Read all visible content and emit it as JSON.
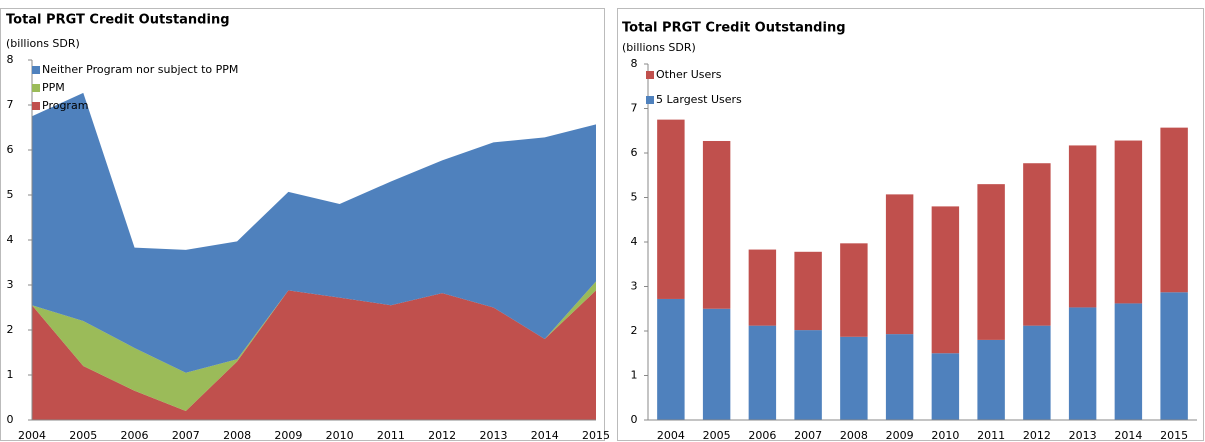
{
  "chart_data": [
    {
      "type": "area",
      "title": "Total PRGT Credit Outstanding",
      "subtitle": "(billions SDR)",
      "categories": [
        "2004",
        "2005",
        "2006",
        "2007",
        "2008",
        "2009",
        "2010",
        "2011",
        "2012",
        "2013",
        "2014",
        "2015"
      ],
      "series": [
        {
          "name": "Program",
          "color": "#c0504d",
          "values": [
            2.55,
            1.2,
            0.65,
            0.2,
            1.3,
            2.88,
            2.72,
            2.55,
            2.82,
            2.5,
            1.8,
            2.88
          ]
        },
        {
          "name": "PPM",
          "color": "#9bbb59",
          "values": [
            0,
            1.0,
            0.95,
            0.85,
            0.05,
            0,
            0,
            0,
            0,
            0,
            0,
            0.2
          ]
        },
        {
          "name": "Neither Program nor subject to PPM",
          "color": "#4f81bd",
          "values": [
            4.2,
            5.07,
            2.23,
            2.73,
            2.62,
            2.19,
            2.08,
            2.75,
            2.95,
            3.67,
            4.48,
            3.49
          ]
        }
      ],
      "ylim": [
        0,
        8
      ],
      "yticks": [
        0,
        1,
        2,
        3,
        4,
        5,
        6,
        7,
        8
      ]
    },
    {
      "type": "bar",
      "title": "Total PRGT Credit Outstanding",
      "subtitle": "(billions SDR)",
      "categories": [
        "2004",
        "2005",
        "2006",
        "2007",
        "2008",
        "2009",
        "2010",
        "2011",
        "2012",
        "2013",
        "2014",
        "2015"
      ],
      "series": [
        {
          "name": "5 Largest Users",
          "color": "#4f81bd",
          "values": [
            2.72,
            2.5,
            2.12,
            2.02,
            1.87,
            1.93,
            1.5,
            1.8,
            2.12,
            2.53,
            2.62,
            2.87
          ]
        },
        {
          "name": "Other Users",
          "color": "#c0504d",
          "values": [
            4.03,
            3.77,
            1.71,
            1.76,
            2.1,
            3.14,
            3.3,
            3.5,
            3.65,
            3.64,
            3.66,
            3.7
          ]
        }
      ],
      "ylim": [
        0,
        8
      ],
      "yticks": [
        0,
        1,
        2,
        3,
        4,
        5,
        6,
        7,
        8
      ]
    }
  ]
}
